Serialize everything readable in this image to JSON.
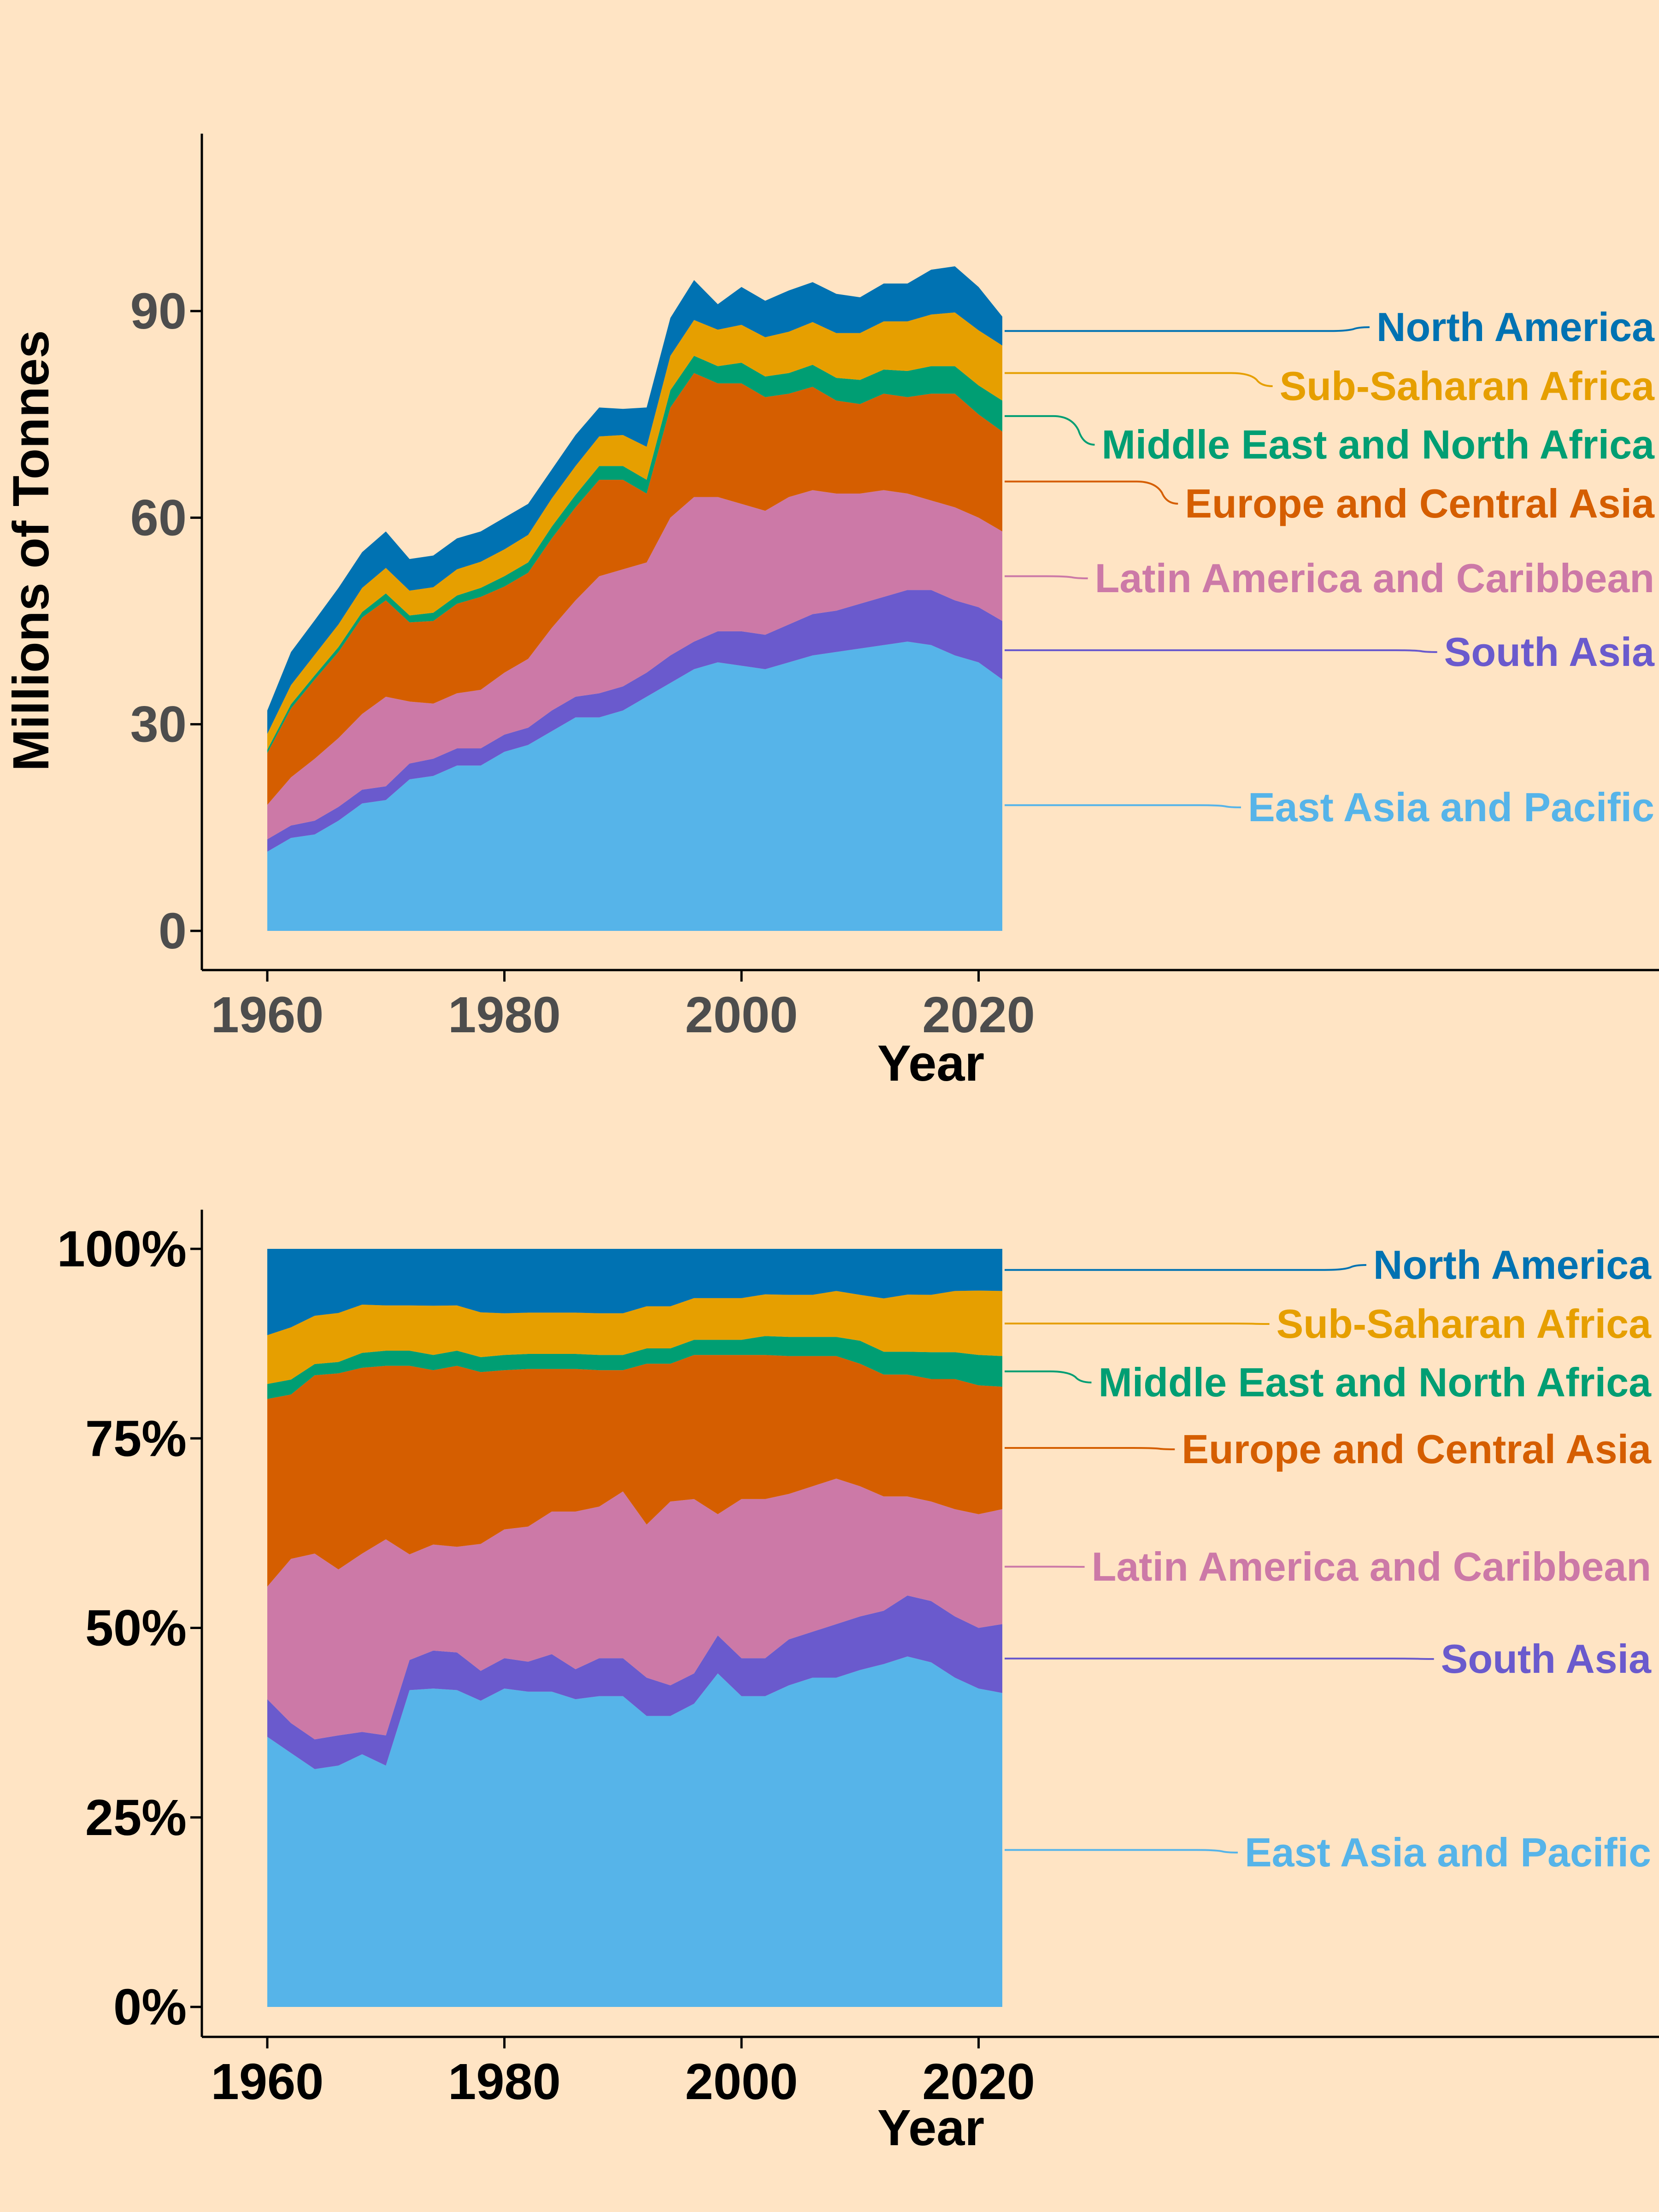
{
  "colors": {
    "background": "#FFE4C4",
    "East Asia and Pacific": "#56B4E9",
    "South Asia": "#6A5ACD",
    "Latin America and Caribbean": "#CC79A7",
    "Europe and Central Asia": "#D55E00",
    "Middle East and North Africa": "#009E73",
    "Sub-Saharan Africa": "#E69F00",
    "North America": "#0072B2"
  },
  "chart_data": [
    {
      "type": "area",
      "stacked": true,
      "title": "",
      "xlabel": "Year",
      "ylabel": "Millions of Tonnes",
      "xlim": [
        1960,
        2022
      ],
      "ylim": [
        0,
        110
      ],
      "xticks": [
        1960,
        1980,
        2000,
        2020
      ],
      "yticks": [
        0,
        30,
        60,
        90
      ],
      "ytick_labels": [
        "0",
        "30",
        "60",
        "90"
      ],
      "grid": false,
      "legend": "direct labels on right",
      "x": [
        1960,
        1962,
        1964,
        1966,
        1968,
        1970,
        1972,
        1974,
        1976,
        1978,
        1980,
        1982,
        1984,
        1986,
        1988,
        1990,
        1992,
        1994,
        1996,
        1998,
        2000,
        2002,
        2004,
        2006,
        2008,
        2010,
        2012,
        2014,
        2016,
        2018,
        2020,
        2022
      ],
      "series": [
        {
          "name": "East Asia and Pacific",
          "values": [
            11.5,
            13.5,
            14,
            16,
            18.5,
            19,
            22,
            22.5,
            24,
            24,
            26,
            27,
            29,
            31,
            31,
            32,
            34,
            36,
            38,
            39,
            38.5,
            38,
            39,
            40,
            40.5,
            41,
            41.5,
            42,
            41.5,
            40,
            39,
            36.5
          ]
        },
        {
          "name": "South Asia",
          "values": [
            1.8,
            1.8,
            2,
            2,
            2,
            2,
            2.3,
            2.5,
            2.5,
            2.5,
            2.5,
            2.5,
            3,
            3,
            3.5,
            3.5,
            3.5,
            4,
            4,
            4.5,
            5,
            5,
            5.5,
            6,
            6,
            6.5,
            7,
            7.5,
            8,
            8,
            8,
            8.5
          ]
        },
        {
          "name": "Latin America and Caribbean",
          "values": [
            5,
            7,
            9,
            10,
            11,
            13,
            9,
            8,
            8,
            8.5,
            9,
            10,
            12,
            14,
            17,
            17,
            16,
            20,
            21,
            19.5,
            18.5,
            18,
            18.5,
            18,
            17,
            16,
            15.5,
            14,
            13,
            13.5,
            13,
            13
          ]
        },
        {
          "name": "Europe and Central Asia",
          "values": [
            7.5,
            10,
            11.5,
            12.5,
            14,
            14,
            11.5,
            12,
            13,
            13.5,
            12.5,
            12.5,
            13,
            13.5,
            14,
            13,
            10,
            16,
            18,
            16.5,
            17.5,
            16.5,
            15,
            15,
            13.5,
            13,
            14,
            14,
            15.5,
            16.5,
            15,
            14.5
          ]
        },
        {
          "name": "Middle East and North Africa",
          "values": [
            0.5,
            0.6,
            0.6,
            0.7,
            0.8,
            1,
            1,
            1.2,
            1.2,
            1.3,
            1.5,
            1.5,
            1.7,
            1.8,
            2,
            2,
            2,
            2.5,
            2.5,
            2.5,
            3,
            3,
            3,
            3.2,
            3.3,
            3.5,
            3.5,
            3.8,
            4,
            4,
            4.2,
            4.5
          ]
        },
        {
          "name": "Sub-Saharan Africa",
          "values": [
            2.3,
            2.8,
            3,
            3.3,
            3.5,
            3.7,
            3.6,
            3.7,
            3.8,
            3.8,
            3.9,
            4,
            4.1,
            4.2,
            4.3,
            4.5,
            4.8,
            5,
            5.2,
            5.3,
            5.5,
            5.7,
            6,
            6.2,
            6.5,
            6.8,
            7,
            7.2,
            7.5,
            7.8,
            8,
            8
          ]
        },
        {
          "name": "North America",
          "values": [
            3.4,
            4.8,
            5,
            5.3,
            5.2,
            5.3,
            4.6,
            4.6,
            4.5,
            4.4,
            4.6,
            4.5,
            4.2,
            4.5,
            4.2,
            3.8,
            5.7,
            5.5,
            5.8,
            3.7,
            5.5,
            5.3,
            6,
            5.8,
            5.7,
            5.2,
            5.5,
            5.5,
            6.5,
            6.7,
            6.3,
            4.2
          ]
        }
      ]
    },
    {
      "type": "area",
      "stacked": true,
      "normalized": true,
      "title": "",
      "xlabel": "Year",
      "ylabel": "",
      "xlim": [
        1960,
        2022
      ],
      "ylim": [
        0,
        1.05
      ],
      "xticks": [
        1960,
        1980,
        2000,
        2020
      ],
      "yticks": [
        0,
        0.25,
        0.5,
        0.75,
        1
      ],
      "ytick_labels": [
        "0%",
        "25%",
        "50%",
        "75%",
        "100%"
      ],
      "grid": false,
      "legend": "direct labels on right",
      "x": [
        1960,
        1962,
        1964,
        1966,
        1968,
        1970,
        1972,
        1974,
        1976,
        1978,
        1980,
        1982,
        1984,
        1986,
        1988,
        1990,
        1992,
        1994,
        1996,
        1998,
        2000,
        2002,
        2004,
        2006,
        2008,
        2010,
        2012,
        2014,
        2016,
        2018,
        2020,
        2022
      ],
      "series": [
        {
          "name": "East Asia and Pacific",
          "values": [
            0.36,
            0.34,
            0.32,
            0.32,
            0.34,
            0.32,
            0.42,
            0.42,
            0.42,
            0.41,
            0.42,
            0.42,
            0.42,
            0.41,
            0.41,
            0.41,
            0.38,
            0.38,
            0.4,
            0.44,
            0.41,
            0.41,
            0.42,
            0.43,
            0.43,
            0.44,
            0.45,
            0.46,
            0.45,
            0.43,
            0.42,
            0.41
          ]
        },
        {
          "name": "South Asia",
          "values": [
            0.05,
            0.04,
            0.04,
            0.04,
            0.03,
            0.04,
            0.04,
            0.05,
            0.05,
            0.04,
            0.04,
            0.04,
            0.05,
            0.04,
            0.05,
            0.05,
            0.05,
            0.04,
            0.04,
            0.05,
            0.05,
            0.05,
            0.06,
            0.06,
            0.07,
            0.07,
            0.07,
            0.08,
            0.08,
            0.08,
            0.08,
            0.09
          ]
        },
        {
          "name": "Latin America and Caribbean",
          "values": [
            0.15,
            0.22,
            0.25,
            0.22,
            0.24,
            0.26,
            0.14,
            0.14,
            0.14,
            0.17,
            0.17,
            0.18,
            0.19,
            0.21,
            0.2,
            0.22,
            0.2,
            0.24,
            0.23,
            0.16,
            0.21,
            0.21,
            0.19,
            0.19,
            0.19,
            0.17,
            0.15,
            0.13,
            0.13,
            0.14,
            0.15,
            0.15
          ]
        },
        {
          "name": "Europe and Central Asia",
          "values": [
            0.25,
            0.22,
            0.24,
            0.26,
            0.25,
            0.23,
            0.25,
            0.23,
            0.24,
            0.23,
            0.21,
            0.21,
            0.19,
            0.19,
            0.18,
            0.16,
            0.21,
            0.18,
            0.19,
            0.21,
            0.19,
            0.19,
            0.18,
            0.17,
            0.16,
            0.16,
            0.16,
            0.16,
            0.16,
            0.17,
            0.17,
            0.16
          ]
        },
        {
          "name": "Middle East and North Africa",
          "values": [
            0.02,
            0.02,
            0.015,
            0.015,
            0.02,
            0.02,
            0.02,
            0.02,
            0.02,
            0.02,
            0.02,
            0.02,
            0.02,
            0.02,
            0.02,
            0.02,
            0.02,
            0.02,
            0.02,
            0.02,
            0.02,
            0.025,
            0.025,
            0.025,
            0.025,
            0.03,
            0.03,
            0.03,
            0.035,
            0.035,
            0.04,
            0.04
          ]
        },
        {
          "name": "Sub-Saharan Africa",
          "values": [
            0.065,
            0.07,
            0.065,
            0.065,
            0.065,
            0.06,
            0.06,
            0.065,
            0.06,
            0.06,
            0.055,
            0.055,
            0.055,
            0.055,
            0.055,
            0.055,
            0.055,
            0.055,
            0.055,
            0.055,
            0.055,
            0.055,
            0.055,
            0.055,
            0.06,
            0.06,
            0.07,
            0.075,
            0.075,
            0.08,
            0.085,
            0.085
          ]
        },
        {
          "name": "North America",
          "values": [
            0.115,
            0.105,
            0.09,
            0.085,
            0.075,
            0.075,
            0.075,
            0.075,
            0.075,
            0.085,
            0.085,
            0.085,
            0.085,
            0.085,
            0.085,
            0.085,
            0.075,
            0.075,
            0.065,
            0.065,
            0.065,
            0.06,
            0.06,
            0.06,
            0.055,
            0.06,
            0.065,
            0.06,
            0.06,
            0.055,
            0.055,
            0.055
          ]
        }
      ]
    }
  ]
}
